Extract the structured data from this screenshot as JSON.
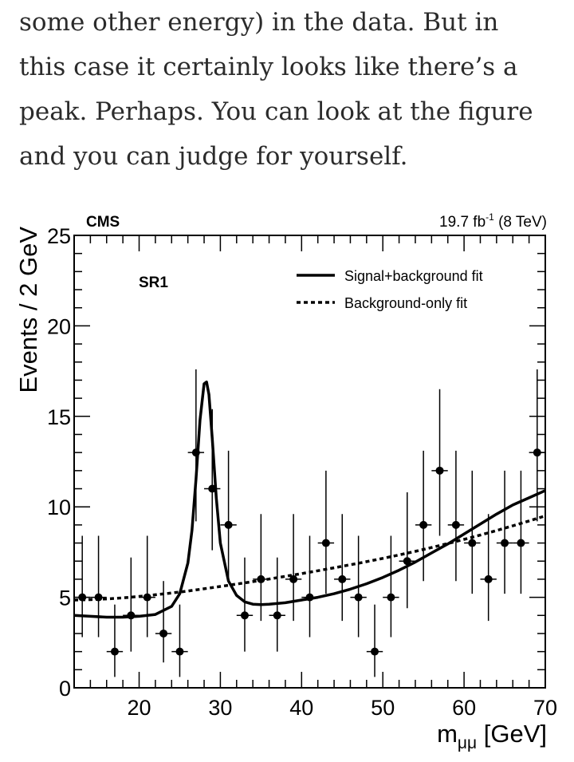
{
  "article": {
    "lines": [
      "some other energy) in the data. But in",
      "this case it certainly looks like there’s a",
      "peak. Perhaps. You can look at the figure",
      "and you can judge for yourself."
    ]
  },
  "chart_data": {
    "type": "scatter",
    "experiment_label": "CMS",
    "lumi_label": "19.7 fb",
    "lumi_superscript": "-1",
    "energy_label": " (8 TeV)",
    "region_label": "SR1",
    "xlabel_main": "m",
    "xlabel_sub": "μμ",
    "xlabel_unit": " [GeV]",
    "ylabel": "Events / 2 GeV",
    "xlim": [
      12,
      70
    ],
    "ylim": [
      0,
      25
    ],
    "x_ticks": [
      20,
      30,
      40,
      50,
      60,
      70
    ],
    "y_ticks": [
      0,
      5,
      10,
      15,
      20,
      25
    ],
    "x_tick_labels": [
      "20",
      "30",
      "40",
      "50",
      "60",
      "70"
    ],
    "y_tick_labels": [
      "0",
      "5",
      "10",
      "15",
      "20",
      "25"
    ],
    "legend": [
      {
        "name": "Signal+background fit",
        "style": "solid"
      },
      {
        "name": "Background-only fit",
        "style": "dashed"
      }
    ],
    "data_points": [
      {
        "x": 13,
        "y": 5,
        "lo": 2.8,
        "hi": 8.4
      },
      {
        "x": 15,
        "y": 5,
        "lo": 2.8,
        "hi": 8.4
      },
      {
        "x": 17,
        "y": 2,
        "lo": 0.6,
        "hi": 4.6
      },
      {
        "x": 19,
        "y": 4,
        "lo": 2.0,
        "hi": 7.2
      },
      {
        "x": 21,
        "y": 5,
        "lo": 2.8,
        "hi": 8.4
      },
      {
        "x": 23,
        "y": 3,
        "lo": 1.4,
        "hi": 5.9
      },
      {
        "x": 25,
        "y": 2,
        "lo": 0.6,
        "hi": 4.6
      },
      {
        "x": 27,
        "y": 13,
        "lo": 9.2,
        "hi": 17.6
      },
      {
        "x": 29,
        "y": 11,
        "lo": 7.6,
        "hi": 15.4
      },
      {
        "x": 31,
        "y": 9,
        "lo": 5.9,
        "hi": 13.1
      },
      {
        "x": 33,
        "y": 4,
        "lo": 2.0,
        "hi": 7.2
      },
      {
        "x": 35,
        "y": 6,
        "lo": 3.7,
        "hi": 9.6
      },
      {
        "x": 37,
        "y": 4,
        "lo": 2.0,
        "hi": 7.2
      },
      {
        "x": 39,
        "y": 6,
        "lo": 3.7,
        "hi": 9.6
      },
      {
        "x": 41,
        "y": 5,
        "lo": 2.8,
        "hi": 8.4
      },
      {
        "x": 43,
        "y": 8,
        "lo": 5.2,
        "hi": 12.0
      },
      {
        "x": 45,
        "y": 6,
        "lo": 3.7,
        "hi": 9.6
      },
      {
        "x": 47,
        "y": 5,
        "lo": 2.8,
        "hi": 8.4
      },
      {
        "x": 49,
        "y": 2,
        "lo": 0.6,
        "hi": 4.6
      },
      {
        "x": 51,
        "y": 5,
        "lo": 2.8,
        "hi": 8.4
      },
      {
        "x": 53,
        "y": 7,
        "lo": 4.4,
        "hi": 10.8
      },
      {
        "x": 55,
        "y": 9,
        "lo": 5.9,
        "hi": 13.1
      },
      {
        "x": 57,
        "y": 12,
        "lo": 8.4,
        "hi": 16.5
      },
      {
        "x": 59,
        "y": 9,
        "lo": 5.9,
        "hi": 13.1
      },
      {
        "x": 61,
        "y": 8,
        "lo": 5.2,
        "hi": 12.0
      },
      {
        "x": 63,
        "y": 6,
        "lo": 3.7,
        "hi": 9.6
      },
      {
        "x": 65,
        "y": 8,
        "lo": 5.2,
        "hi": 12.0
      },
      {
        "x": 67,
        "y": 8,
        "lo": 5.2,
        "hi": 12.0
      },
      {
        "x": 69,
        "y": 13,
        "lo": 9.2,
        "hi": 17.6
      }
    ],
    "fit_curves": {
      "signal_plus_background": {
        "x": [
          12,
          14,
          16,
          18,
          20,
          22,
          24,
          25,
          26,
          26.5,
          27,
          27.5,
          28,
          28.3,
          28.6,
          29,
          29.5,
          30,
          31,
          32,
          33,
          34,
          35,
          36,
          38,
          40,
          42,
          44,
          46,
          48,
          50,
          52,
          54,
          56,
          58,
          60,
          62,
          64,
          66,
          68,
          70
        ],
        "y": [
          4.0,
          3.95,
          3.9,
          3.9,
          3.95,
          4.05,
          4.5,
          5.2,
          6.9,
          8.7,
          11.5,
          14.8,
          16.8,
          16.9,
          16.2,
          13.8,
          10.5,
          8.0,
          5.9,
          5.1,
          4.75,
          4.62,
          4.6,
          4.62,
          4.7,
          4.85,
          5.0,
          5.2,
          5.45,
          5.75,
          6.1,
          6.5,
          6.95,
          7.45,
          7.95,
          8.5,
          9.05,
          9.6,
          10.1,
          10.5,
          10.9
        ]
      },
      "background_only": {
        "x": [
          12,
          14,
          16,
          18,
          20,
          22,
          24,
          26,
          28,
          30,
          32,
          34,
          36,
          38,
          40,
          42,
          44,
          46,
          48,
          50,
          52,
          54,
          56,
          58,
          60,
          62,
          64,
          66,
          68,
          70
        ],
        "y": [
          4.85,
          4.87,
          4.91,
          4.97,
          5.05,
          5.14,
          5.24,
          5.35,
          5.47,
          5.6,
          5.73,
          5.87,
          6.01,
          6.16,
          6.31,
          6.47,
          6.63,
          6.8,
          6.97,
          7.15,
          7.34,
          7.54,
          7.75,
          7.97,
          8.2,
          8.44,
          8.69,
          8.95,
          9.22,
          9.5
        ]
      }
    }
  }
}
